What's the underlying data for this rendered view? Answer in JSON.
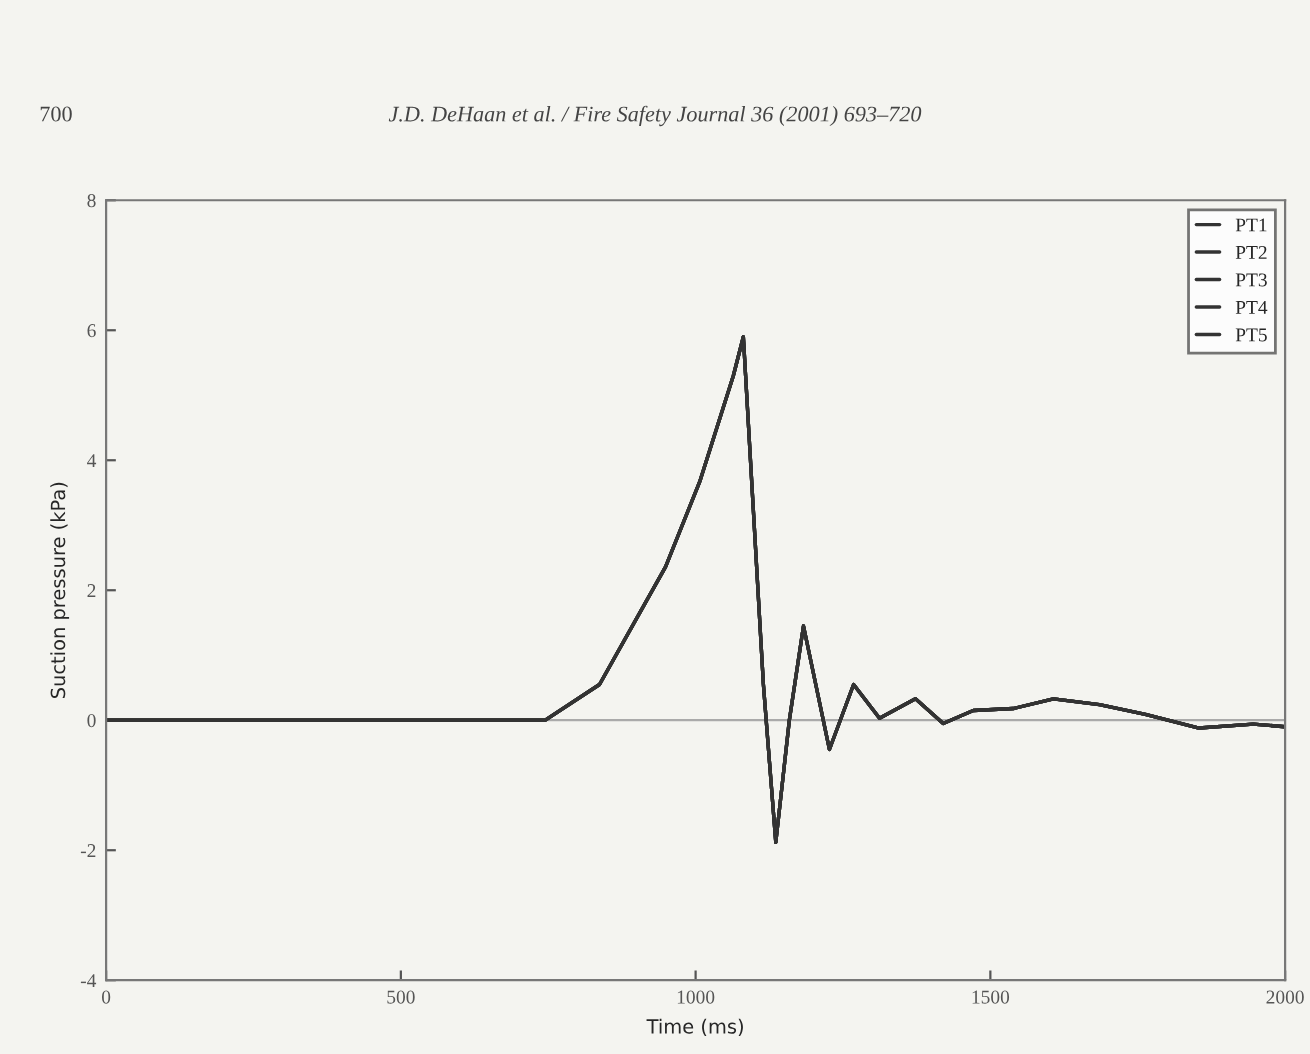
{
  "chart_data": {
    "type": "line",
    "annotations": [
      "700",
      "J.D. DeHaan et al. / Fire Safety Journal 36 (2001) 693–720"
    ],
    "xlabel": "Time (ms)",
    "ylabel": "Suction pressure (kPa)",
    "x": [
      0,
      200,
      400,
      600,
      745,
      837,
      949,
      1007,
      1064,
      1081,
      1115,
      1136,
      1159,
      1183,
      1227,
      1268,
      1312,
      1373,
      1420,
      1471,
      1539,
      1607,
      1685,
      1763,
      1854,
      1946,
      2000
    ],
    "series": [
      {
        "name": "PT1",
        "color": "#333333",
        "values": [
          0,
          0,
          0,
          0,
          0,
          0.55,
          2.36,
          3.67,
          5.3,
          5.9,
          0.55,
          -1.88,
          0,
          1.45,
          -0.45,
          0.55,
          0.03,
          0.33,
          -0.05,
          0.15,
          0.18,
          0.33,
          0.24,
          0.09,
          -0.12,
          -0.06,
          -0.1
        ]
      },
      {
        "name": "PT2",
        "color": "#333333",
        "values": [
          0,
          0,
          0,
          0,
          0,
          0.55,
          2.36,
          3.67,
          5.3,
          5.9,
          0.55,
          -1.88,
          0,
          1.45,
          -0.45,
          0.55,
          0.03,
          0.33,
          -0.05,
          0.15,
          0.18,
          0.33,
          0.24,
          0.09,
          -0.12,
          -0.06,
          -0.1
        ]
      },
      {
        "name": "PT3",
        "color": "#333333",
        "values": [
          0,
          0,
          0,
          0,
          0,
          0.55,
          2.36,
          3.67,
          5.3,
          5.9,
          0.55,
          -1.88,
          0,
          1.45,
          -0.45,
          0.55,
          0.03,
          0.33,
          -0.05,
          0.15,
          0.18,
          0.33,
          0.24,
          0.09,
          -0.12,
          -0.06,
          -0.1
        ]
      },
      {
        "name": "PT4",
        "color": "#333333",
        "values": [
          0,
          0,
          0,
          0,
          0,
          0.55,
          2.36,
          3.67,
          5.3,
          5.9,
          0.55,
          -1.88,
          0,
          1.45,
          -0.45,
          0.55,
          0.03,
          0.33,
          -0.05,
          0.15,
          0.18,
          0.33,
          0.24,
          0.09,
          -0.12,
          -0.06,
          -0.1
        ]
      },
      {
        "name": "PT5",
        "color": "#333333",
        "values": [
          0,
          0,
          0,
          0,
          0,
          0.55,
          2.36,
          3.67,
          5.3,
          5.9,
          0.55,
          -1.88,
          0,
          1.45,
          -0.45,
          0.55,
          0.03,
          0.33,
          -0.05,
          0.15,
          0.18,
          0.33,
          0.24,
          0.09,
          -0.12,
          -0.06,
          -0.1
        ]
      }
    ],
    "xlim": [
      0,
      2000
    ],
    "xticks": [
      0,
      500,
      1000,
      1500,
      2000
    ],
    "ylim": [
      -4,
      8
    ],
    "yticks": [
      -4,
      -2,
      0,
      2,
      4,
      6,
      8
    ],
    "ref_lines": [
      {
        "axis": "y",
        "value": 0,
        "color": "#aaaaaa"
      }
    ],
    "grid": false,
    "legend": "top right",
    "line_style": "solid"
  }
}
